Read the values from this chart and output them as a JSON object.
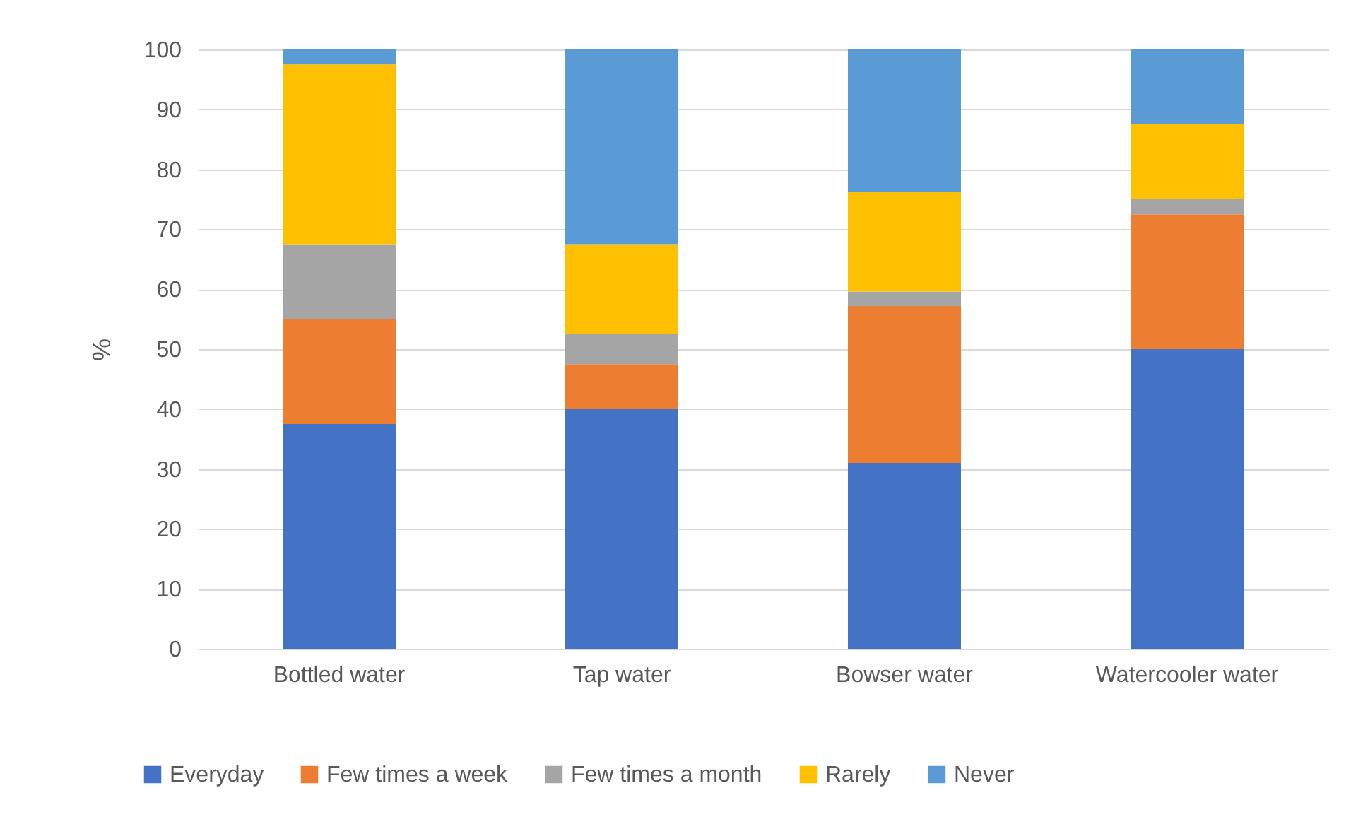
{
  "chart_data": {
    "type": "bar",
    "stacked": true,
    "ylabel": "%",
    "categories": [
      "Bottled water",
      "Tap water",
      "Bowser water",
      "Watercooler water"
    ],
    "series": [
      {
        "name": "Everyday",
        "color": "#4472c4",
        "values": [
          37.5,
          40,
          31,
          50
        ]
      },
      {
        "name": "Few times a week",
        "color": "#ed7d31",
        "values": [
          17.5,
          7.5,
          26.2,
          22.5
        ]
      },
      {
        "name": "Few times a month",
        "color": "#a5a5a5",
        "values": [
          12.5,
          5,
          2.4,
          2.5
        ]
      },
      {
        "name": "Rarely",
        "color": "#ffc000",
        "values": [
          30,
          15,
          16.7,
          12.5
        ]
      },
      {
        "name": "Never",
        "color": "#5b9bd5",
        "values": [
          2.5,
          32.5,
          23.7,
          12.5
        ]
      }
    ],
    "ylim": [
      0,
      100
    ],
    "yticks": [
      0,
      10,
      20,
      30,
      40,
      50,
      60,
      70,
      80,
      90,
      100
    ],
    "grid": "y",
    "legend": "bottom"
  }
}
